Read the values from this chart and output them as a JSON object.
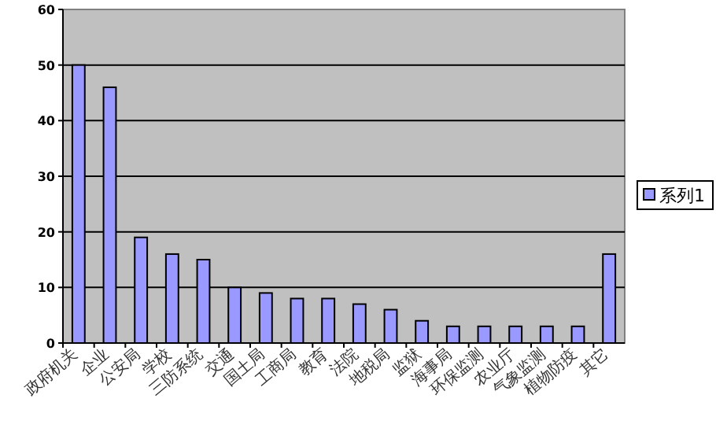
{
  "chart_data": {
    "type": "bar",
    "categories": [
      "政府机关",
      "企业",
      "公安局",
      "学校",
      "三防系统",
      "交通",
      "国土局",
      "工商局",
      "教育",
      "法院",
      "地税局",
      "监狱",
      "海事局",
      "环保监测",
      "农业厅",
      "气象监测",
      "植物防疫",
      "其它"
    ],
    "series": [
      {
        "name": "系列1",
        "color": "#9999ff",
        "values": [
          50,
          46,
          19,
          16,
          15,
          10,
          9,
          8,
          8,
          7,
          6,
          4,
          3,
          3,
          3,
          3,
          3,
          16
        ]
      }
    ],
    "ylim": [
      0,
      60
    ],
    "yticks": [
      0,
      10,
      20,
      30,
      40,
      50,
      60
    ],
    "grid": "y",
    "legend": "right"
  }
}
